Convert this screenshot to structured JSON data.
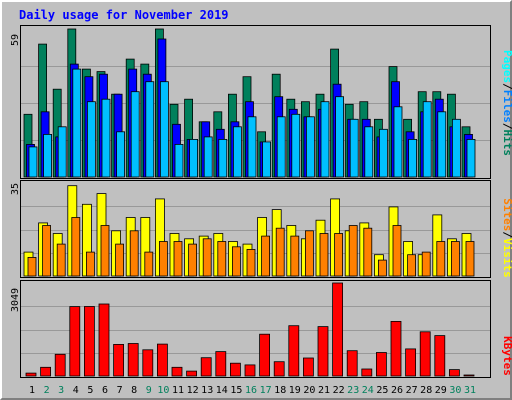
{
  "title": "Daily usage for November 2019",
  "colors": {
    "background": "#c0c0c0",
    "title": "#0000ff",
    "hits": "#00805c",
    "files": "#00c0ff",
    "pages": "#00ffff",
    "visits": "#ffff00",
    "sites": "#ff8000",
    "kbytes": "#ff0000",
    "weekday_label": "#000000",
    "weekend_label": "#00805c"
  },
  "labels": {
    "pages": "Pages",
    "files": "Files",
    "hits": "Hits",
    "visits": "Visits",
    "sites": "Sites",
    "kbytes": "KBytes",
    "separator": "/"
  },
  "chart_data": [
    {
      "type": "bar",
      "panel": "hits-files-pages",
      "y_max_label": "59",
      "ylim": [
        0,
        59
      ],
      "categories": [
        "1",
        "2",
        "3",
        "4",
        "5",
        "6",
        "7",
        "8",
        "9",
        "10",
        "11",
        "12",
        "13",
        "14",
        "15",
        "16",
        "17",
        "18",
        "19",
        "20",
        "21",
        "22",
        "23",
        "24",
        "25",
        "26",
        "27",
        "28",
        "29",
        "30",
        "31"
      ],
      "weekend_days": [
        "2",
        "3",
        "9",
        "10",
        "16",
        "17",
        "23",
        "24",
        "30",
        "31"
      ],
      "series": [
        {
          "name": "Hits",
          "values": [
            25,
            53,
            35,
            59,
            43,
            42,
            33,
            47,
            45,
            59,
            29,
            31,
            22,
            26,
            33,
            40,
            18,
            41,
            31,
            30,
            33,
            51,
            29,
            30,
            23,
            44,
            23,
            34,
            34,
            33,
            20
          ]
        },
        {
          "name": "Files",
          "values": [
            13,
            26,
            16,
            45,
            40,
            41,
            33,
            43,
            41,
            55,
            21,
            15,
            22,
            19,
            22,
            30,
            14,
            32,
            27,
            24,
            27,
            37,
            23,
            23,
            16,
            38,
            18,
            26,
            31,
            20,
            17
          ]
        },
        {
          "name": "Pages",
          "values": [
            12,
            17,
            20,
            43,
            30,
            31,
            18,
            34,
            38,
            38,
            13,
            15,
            16,
            15,
            20,
            24,
            14,
            24,
            25,
            24,
            30,
            32,
            23,
            20,
            19,
            28,
            15,
            30,
            26,
            23,
            15
          ]
        }
      ]
    },
    {
      "type": "bar",
      "panel": "visits-sites",
      "y_max_label": "35",
      "ylim": [
        0,
        35
      ],
      "categories": [
        "1",
        "2",
        "3",
        "4",
        "5",
        "6",
        "7",
        "8",
        "9",
        "10",
        "11",
        "12",
        "13",
        "14",
        "15",
        "16",
        "17",
        "18",
        "19",
        "20",
        "21",
        "22",
        "23",
        "24",
        "25",
        "26",
        "27",
        "28",
        "29",
        "30",
        "31"
      ],
      "series": [
        {
          "name": "Visits",
          "values": [
            9,
            20,
            16,
            34,
            27,
            31,
            17,
            22,
            22,
            29,
            16,
            14,
            15,
            16,
            13,
            12,
            22,
            25,
            19,
            14,
            21,
            29,
            17,
            20,
            8,
            26,
            13,
            8,
            23,
            14,
            16
          ]
        },
        {
          "name": "Sites",
          "values": [
            7,
            19,
            12,
            22,
            9,
            19,
            12,
            17,
            9,
            13,
            13,
            12,
            14,
            13,
            11,
            10,
            15,
            18,
            15,
            17,
            16,
            16,
            19,
            18,
            6,
            19,
            8,
            9,
            13,
            13,
            13
          ]
        }
      ]
    },
    {
      "type": "bar",
      "panel": "kbytes",
      "y_max_label": "3049",
      "ylim": [
        0,
        3049
      ],
      "categories": [
        "1",
        "2",
        "3",
        "4",
        "5",
        "6",
        "7",
        "8",
        "9",
        "10",
        "11",
        "12",
        "13",
        "14",
        "15",
        "16",
        "17",
        "18",
        "19",
        "20",
        "21",
        "22",
        "23",
        "24",
        "25",
        "26",
        "27",
        "28",
        "29",
        "30",
        "31"
      ],
      "series": [
        {
          "name": "KBytes",
          "values": [
            95,
            285,
            710,
            2275,
            2280,
            2360,
            1035,
            1065,
            860,
            1045,
            285,
            160,
            600,
            800,
            420,
            365,
            1370,
            470,
            1650,
            590,
            1620,
            3049,
            830,
            230,
            770,
            1790,
            890,
            1450,
            1325,
            210,
            20
          ]
        }
      ]
    }
  ]
}
